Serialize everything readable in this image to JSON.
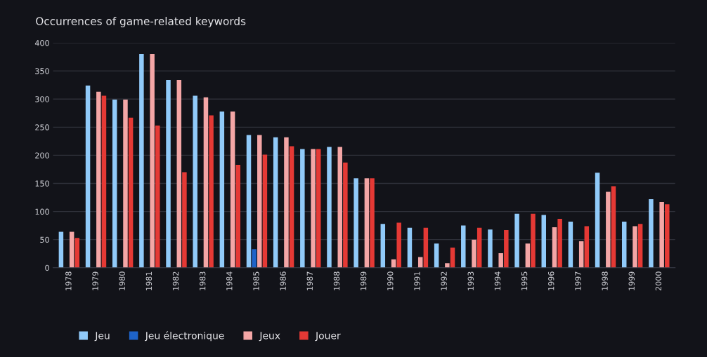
{
  "chart_data": {
    "type": "bar",
    "title": "Occurrences of game-related keywords",
    "categories": [
      "1978",
      "1979",
      "1980",
      "1981",
      "1982",
      "1983",
      "1984",
      "1985",
      "1986",
      "1987",
      "1988",
      "1989",
      "1990",
      "1991",
      "1992",
      "1993",
      "1994",
      "1995",
      "1996",
      "1997",
      "1998",
      "1999",
      "2000"
    ],
    "series": [
      {
        "name": "Jeu",
        "color": "#90caf9",
        "values": [
          64,
          324,
          299,
          380,
          334,
          306,
          278,
          236,
          232,
          211,
          215,
          159,
          78,
          71,
          43,
          75,
          68,
          96,
          94,
          82,
          169,
          82,
          122
        ]
      },
      {
        "name": "Jeu électronique",
        "color": "#1e63c8",
        "values": [
          null,
          null,
          null,
          null,
          null,
          null,
          null,
          33,
          null,
          null,
          null,
          null,
          null,
          null,
          null,
          null,
          null,
          null,
          null,
          null,
          null,
          null,
          null
        ]
      },
      {
        "name": "Jeux",
        "color": "#f4a6a6",
        "values": [
          64,
          313,
          299,
          380,
          334,
          303,
          278,
          236,
          232,
          211,
          215,
          159,
          15,
          19,
          8,
          50,
          26,
          43,
          72,
          47,
          135,
          74,
          117
        ]
      },
      {
        "name": "Jouer",
        "color": "#e53935",
        "values": [
          53,
          306,
          267,
          253,
          170,
          271,
          183,
          201,
          216,
          211,
          187,
          159,
          80,
          71,
          36,
          71,
          67,
          96,
          87,
          74,
          145,
          78,
          113
        ]
      }
    ],
    "ylim": [
      0,
      400
    ],
    "yticks": [
      0,
      50,
      100,
      150,
      200,
      250,
      300,
      350,
      400
    ],
    "grid": "y",
    "legend": "bottom left"
  }
}
